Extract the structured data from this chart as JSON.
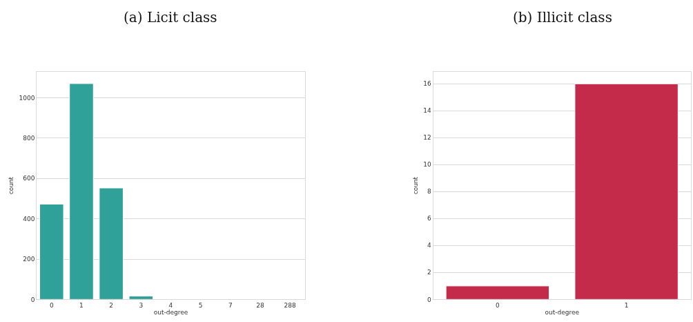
{
  "chart_data": [
    {
      "type": "bar",
      "title": "(a) Licit class",
      "xlabel": "out-degree",
      "ylabel": "count",
      "categories": [
        "0",
        "1",
        "2",
        "3",
        "4",
        "5",
        "7",
        "28",
        "288"
      ],
      "values": [
        473,
        1071,
        553,
        17,
        null,
        null,
        null,
        null,
        null
      ],
      "color": "#30a198",
      "ylim": [
        0,
        1130
      ],
      "yticks": [
        0,
        200,
        400,
        600,
        800,
        1000
      ],
      "grid": "y"
    },
    {
      "type": "bar",
      "title": "(b) Illicit class",
      "xlabel": "out-degree",
      "ylabel": "count",
      "categories": [
        "0",
        "1"
      ],
      "values": [
        1,
        16
      ],
      "color": "#c42b4b",
      "ylim": [
        0,
        16.9
      ],
      "yticks": [
        0,
        2,
        4,
        6,
        8,
        10,
        12,
        14,
        16
      ],
      "grid": "y"
    }
  ]
}
